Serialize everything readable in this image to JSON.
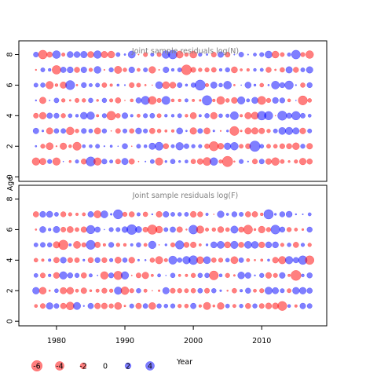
{
  "chart_data": [
    {
      "type": "scatter",
      "title": "Joint sample residuals log(N)",
      "ylabel": "Age",
      "ylim": [
        -0.3,
        8.9
      ],
      "yticks": [
        0,
        2,
        4,
        6,
        8
      ],
      "ages": [
        1,
        2,
        3,
        4,
        5,
        6,
        7,
        8
      ],
      "positive_color": "#0000ff",
      "negative_color": "#ff0000",
      "seed": 3
    },
    {
      "type": "scatter",
      "title": "Joint sample residuals log(F)",
      "ylabel": "",
      "ylim": [
        -0.3,
        8.9
      ],
      "yticks": [
        0,
        2,
        4,
        6,
        8
      ],
      "ages": [
        1,
        2,
        3,
        4,
        5,
        6,
        7
      ],
      "positive_color": "#0000ff",
      "negative_color": "#ff0000",
      "seed": 11
    }
  ],
  "shared_axes": {
    "xlabel": "Year",
    "years_start": 1977,
    "years_end": 2017,
    "xlim": [
      1974.5,
      2019.5
    ],
    "xticks": [
      1980,
      1990,
      2000,
      2010
    ]
  },
  "legend": {
    "values": [
      -6,
      -4,
      -2,
      0,
      2,
      4
    ],
    "labels": [
      "-6",
      "-4",
      "-2",
      "0",
      "2",
      "4"
    ]
  }
}
